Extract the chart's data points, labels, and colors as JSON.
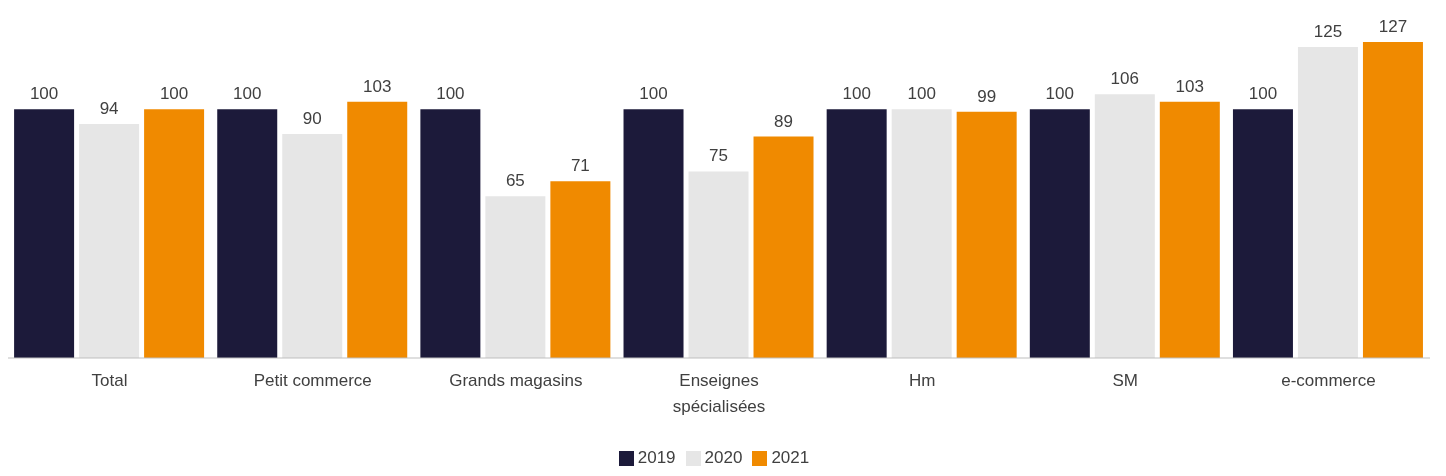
{
  "chart_data": {
    "type": "bar",
    "categories": [
      "Total",
      "Petit commerce",
      "Grands magasins",
      "Enseignes spécialisées",
      "Hm",
      "SM",
      "e-commerce"
    ],
    "series": [
      {
        "name": "2019",
        "color": "#1c1a3a",
        "values": [
          100,
          100,
          100,
          100,
          100,
          100,
          100
        ]
      },
      {
        "name": "2020",
        "color": "#e6e6e6",
        "values": [
          94,
          90,
          65,
          75,
          100,
          106,
          125
        ]
      },
      {
        "name": "2021",
        "color": "#f08a00",
        "values": [
          100,
          103,
          71,
          89,
          99,
          103,
          127
        ]
      }
    ],
    "data_labels": true,
    "legend": "bottom",
    "grid": false
  }
}
